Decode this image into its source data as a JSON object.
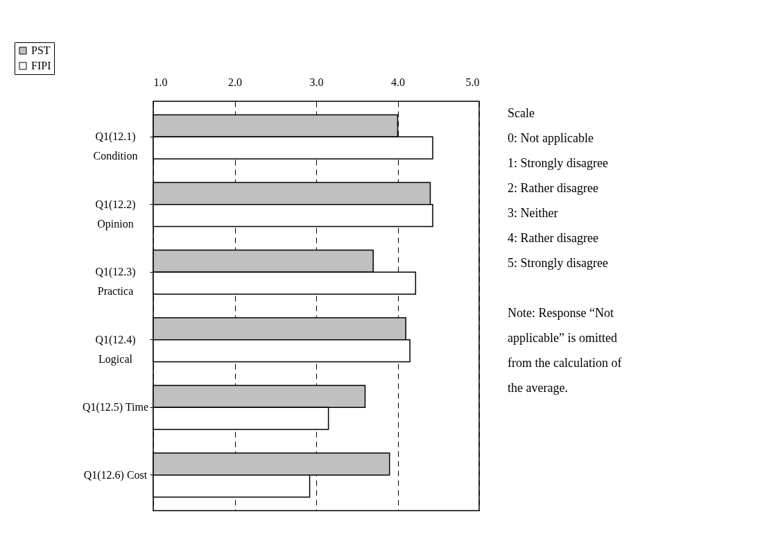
{
  "chart_data": {
    "type": "bar",
    "orientation": "horizontal",
    "categories": [
      "Q1(12.1)\nCondition",
      "Q1(12.2)\nOpinion",
      "Q1(12.3)\nPractica",
      "Q1(12.4)\nLogical",
      "Q1(12.5) Time",
      "Q1(12.6) Cost"
    ],
    "series": [
      {
        "name": "PST",
        "color": "#c0c0c0",
        "values": [
          4.0,
          4.4,
          3.7,
          4.1,
          3.6,
          3.9
        ]
      },
      {
        "name": "FIPI",
        "color": "#ffffff",
        "values": [
          4.43,
          4.43,
          4.22,
          4.15,
          3.15,
          2.92
        ]
      }
    ],
    "xlim": [
      1.0,
      5.0
    ],
    "xticks": [
      {
        "value": 1,
        "label": "1.0"
      },
      {
        "value": 2,
        "label": "2.0"
      },
      {
        "value": 3,
        "label": "3.0"
      },
      {
        "value": 4,
        "label": "4.0"
      },
      {
        "value": 5,
        "label": "5.0"
      }
    ],
    "grid": "x",
    "legend": "top left",
    "annotations": [
      "Scale",
      "0: Not applicable",
      "1: Strongly disagree",
      "2: Rather disagree",
      "3: Neither",
      "4: Rather disagree",
      "5: Strongly disagree",
      "Note: Response “Not applicable” is omitted from the calculation of the average."
    ]
  }
}
